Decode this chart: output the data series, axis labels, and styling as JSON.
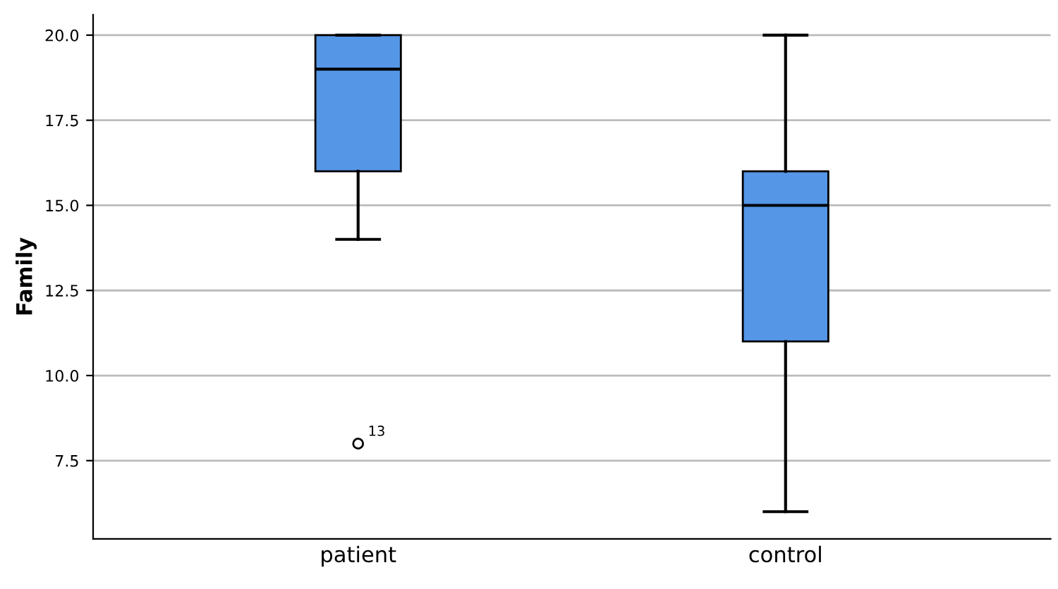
{
  "chart_data": {
    "type": "box",
    "ylabel": "Family",
    "categories": [
      "patient",
      "control"
    ],
    "color": "#5596e6",
    "boxes": [
      {
        "low": 14,
        "q1": 16,
        "median": 19,
        "q3": 20,
        "high": 20,
        "outliers": [
          8
        ]
      },
      {
        "low": 6,
        "q1": 11,
        "median": 15,
        "q3": 16,
        "high": 20
      }
    ],
    "annotations": [
      "13"
    ],
    "ylim": [
      5.2,
      20.6
    ],
    "yticks": [
      7.5,
      {
        "value": 10,
        "label": "10.0"
      },
      12.5,
      {
        "value": 15,
        "label": "15.0"
      },
      17.5,
      {
        "value": 20,
        "label": "20.0"
      }
    ],
    "grid": "y"
  }
}
